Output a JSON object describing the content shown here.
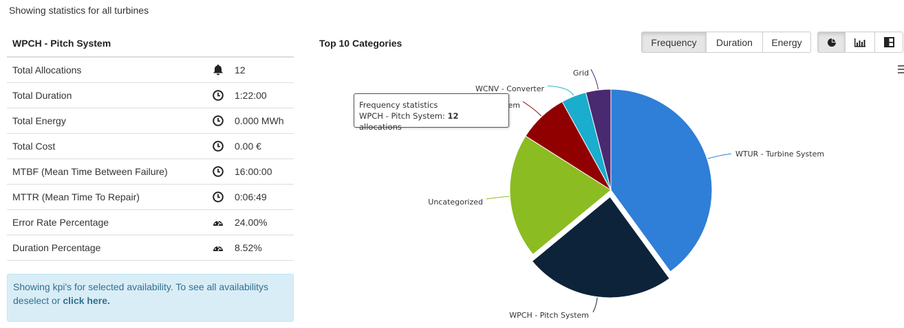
{
  "header": {
    "note": "Showing statistics for all turbines"
  },
  "kpi": {
    "title": "WPCH - Pitch System",
    "rows": [
      {
        "label": "Total Allocations",
        "icon": "bell-icon",
        "value": "12"
      },
      {
        "label": "Total Duration",
        "icon": "clock-icon",
        "value": "1:22:00"
      },
      {
        "label": "Total Energy",
        "icon": "clock-icon",
        "value": "0.000 MWh"
      },
      {
        "label": "Total Cost",
        "icon": "clock-icon",
        "value": "0.00 €"
      },
      {
        "label": "MTBF (Mean Time Between Failure)",
        "icon": "clock-icon",
        "value": "16:00:00"
      },
      {
        "label": "MTTR (Mean Time To Repair)",
        "icon": "clock-icon",
        "value": "0:06:49"
      },
      {
        "label": "Error Rate Percentage",
        "icon": "gauge-icon",
        "value": "24.00%"
      },
      {
        "label": "Duration Percentage",
        "icon": "gauge-icon",
        "value": "8.52%"
      }
    ],
    "alert_text": "Showing kpi's for selected availability. To see all availabilitys deselect or ",
    "alert_link": "click here."
  },
  "chart_controls": {
    "title": "Top 10 Categories",
    "metric_buttons": [
      "Frequency",
      "Duration",
      "Energy"
    ],
    "active_metric": "Frequency",
    "view_icons": [
      "pie-chart-icon",
      "bar-chart-icon",
      "treemap-icon"
    ],
    "active_view": "pie-chart-icon"
  },
  "chart_data": {
    "type": "pie",
    "title": "Top 10 Categories",
    "metric": "Frequency",
    "slices": [
      {
        "label": "WTUR - Turbine System",
        "value": 20,
        "color": "#2f7ed8"
      },
      {
        "label": "WPCH - Pitch System",
        "value": 12,
        "color": "#0d233a",
        "sliced": true
      },
      {
        "label": "Uncategorized",
        "value": 10,
        "color": "#8bbc21"
      },
      {
        "label": "WYAW - Yaw System",
        "value": 4,
        "color": "#910000"
      },
      {
        "label": "WCNV - Converter",
        "value": 2,
        "color": "#1aadce"
      },
      {
        "label": "Grid",
        "value": 2,
        "color": "#492970"
      }
    ]
  },
  "tooltip": {
    "title": "Frequency statistics",
    "series": "WPCH - Pitch System: ",
    "value": "12",
    "unit": " allocations"
  }
}
